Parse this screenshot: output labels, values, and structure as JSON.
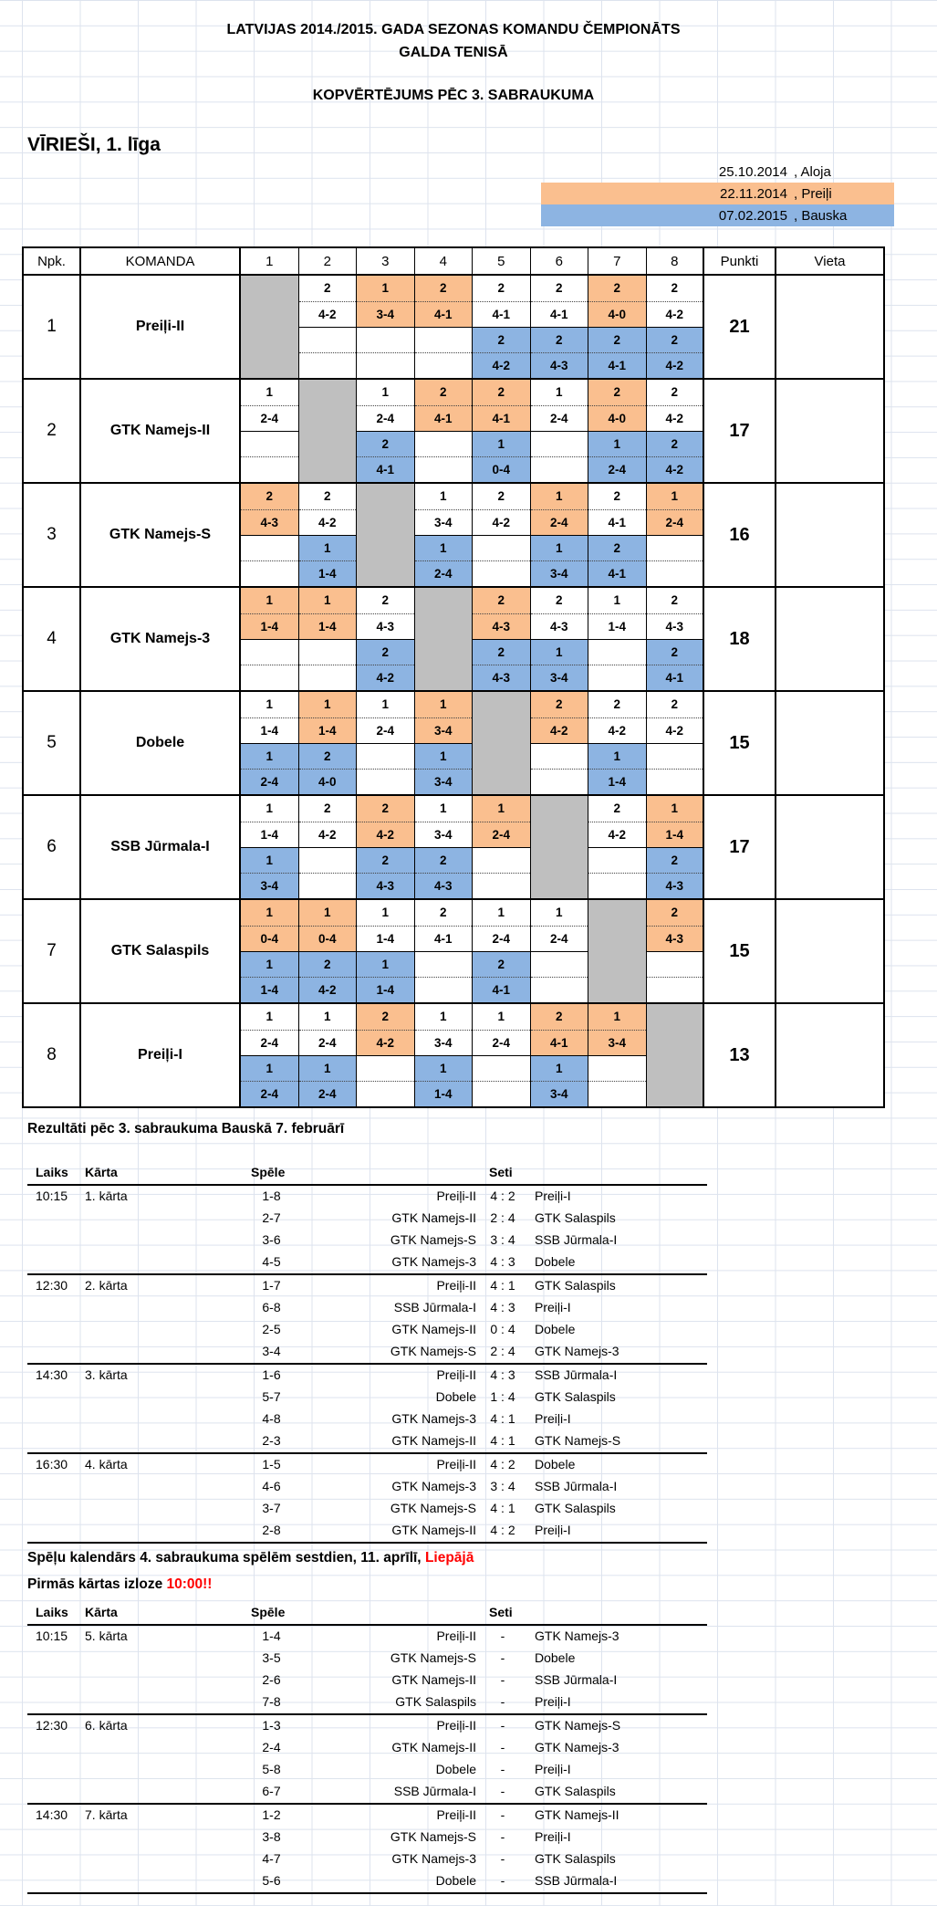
{
  "titles": {
    "line1": "LATVIJAS 2014./2015. GADA SEZONAS KOMANDU ČEMPIONĀTS",
    "line2": "GALDA TENISĀ",
    "line3": "KOPVĒRTĒJUMS PĒC 3. SABRAUKUMA",
    "league": "VĪRIEŠI, 1. līga"
  },
  "colors": {
    "orange": "#FABF8F",
    "blue": "#8DB4E2",
    "gray": "#BFBFBF",
    "red": "#FF0000"
  },
  "legend": [
    {
      "date": "25.10.2014",
      "city": ", Aloja",
      "fill": ""
    },
    {
      "date": "22.11.2014",
      "city": ", Preiļi",
      "fill": "#FABF8F"
    },
    {
      "date": "07.02.2015",
      "city": ", Bauska",
      "fill": "#8DB4E2"
    }
  ],
  "standings": {
    "headers": {
      "npk": "Npk.",
      "team": "KOMANDA",
      "cols": [
        "1",
        "2",
        "3",
        "4",
        "5",
        "6",
        "7",
        "8"
      ],
      "points": "Punkti",
      "place": "Vieta"
    },
    "teams": [
      {
        "npk": "1",
        "name": "Preiļi-II",
        "points": "21",
        "place": "",
        "cells": [
          null,
          {
            "t": [
              "2",
              "4-2"
            ],
            "tc": "w"
          },
          {
            "t": [
              "1",
              "3-4"
            ],
            "tc": "o"
          },
          {
            "t": [
              "2",
              "4-1"
            ],
            "tc": "o"
          },
          {
            "t": [
              "2",
              "4-1"
            ],
            "tc": "w",
            "b": [
              "2",
              "4-2"
            ]
          },
          {
            "t": [
              "2",
              "4-1"
            ],
            "tc": "w",
            "b": [
              "2",
              "4-3"
            ]
          },
          {
            "t": [
              "2",
              "4-0"
            ],
            "tc": "o",
            "b": [
              "2",
              "4-1"
            ]
          },
          {
            "t": [
              "2",
              "4-2"
            ],
            "tc": "w",
            "b": [
              "2",
              "4-2"
            ]
          }
        ]
      },
      {
        "npk": "2",
        "name": "GTK Namejs-II",
        "points": "17",
        "place": "",
        "cells": [
          {
            "t": [
              "1",
              "2-4"
            ],
            "tc": "w"
          },
          null,
          {
            "t": [
              "1",
              "2-4"
            ],
            "tc": "w",
            "b": [
              "2",
              "4-1"
            ]
          },
          {
            "t": [
              "2",
              "4-1"
            ],
            "tc": "o"
          },
          {
            "t": [
              "2",
              "4-1"
            ],
            "tc": "o",
            "b": [
              "1",
              "0-4"
            ]
          },
          {
            "t": [
              "1",
              "2-4"
            ],
            "tc": "w"
          },
          {
            "t": [
              "2",
              "4-0"
            ],
            "tc": "o",
            "b": [
              "1",
              "2-4"
            ]
          },
          {
            "t": [
              "2",
              "4-2"
            ],
            "tc": "w",
            "b": [
              "2",
              "4-2"
            ]
          }
        ]
      },
      {
        "npk": "3",
        "name": "GTK Namejs-S",
        "points": "16",
        "place": "",
        "cells": [
          {
            "t": [
              "2",
              "4-3"
            ],
            "tc": "o"
          },
          {
            "t": [
              "2",
              "4-2"
            ],
            "tc": "w",
            "b": [
              "1",
              "1-4"
            ]
          },
          null,
          {
            "t": [
              "1",
              "3-4"
            ],
            "tc": "w",
            "b": [
              "1",
              "2-4"
            ]
          },
          {
            "t": [
              "2",
              "4-2"
            ],
            "tc": "w"
          },
          {
            "t": [
              "1",
              "2-4"
            ],
            "tc": "o",
            "b": [
              "1",
              "3-4"
            ]
          },
          {
            "t": [
              "2",
              "4-1"
            ],
            "tc": "w",
            "b": [
              "2",
              "4-1"
            ]
          },
          {
            "t": [
              "1",
              "2-4"
            ],
            "tc": "o"
          }
        ]
      },
      {
        "npk": "4",
        "name": "GTK Namejs-3",
        "points": "18",
        "place": "",
        "cells": [
          {
            "t": [
              "1",
              "1-4"
            ],
            "tc": "o"
          },
          {
            "t": [
              "1",
              "1-4"
            ],
            "tc": "o"
          },
          {
            "t": [
              "2",
              "4-3"
            ],
            "tc": "w",
            "b": [
              "2",
              "4-2"
            ]
          },
          null,
          {
            "t": [
              "2",
              "4-3"
            ],
            "tc": "o",
            "b": [
              "2",
              "4-3"
            ]
          },
          {
            "t": [
              "2",
              "4-3"
            ],
            "tc": "w",
            "b": [
              "1",
              "3-4"
            ]
          },
          {
            "t": [
              "1",
              "1-4"
            ],
            "tc": "w"
          },
          {
            "t": [
              "2",
              "4-3"
            ],
            "tc": "w",
            "b": [
              "2",
              "4-1"
            ]
          }
        ]
      },
      {
        "npk": "5",
        "name": "Dobele",
        "points": "15",
        "place": "",
        "cells": [
          {
            "t": [
              "1",
              "1-4"
            ],
            "tc": "w",
            "b": [
              "1",
              "2-4"
            ]
          },
          {
            "t": [
              "1",
              "1-4"
            ],
            "tc": "o",
            "b": [
              "2",
              "4-0"
            ]
          },
          {
            "t": [
              "1",
              "2-4"
            ],
            "tc": "w"
          },
          {
            "t": [
              "1",
              "3-4"
            ],
            "tc": "o",
            "b": [
              "1",
              "3-4"
            ]
          },
          null,
          {
            "t": [
              "2",
              "4-2"
            ],
            "tc": "o"
          },
          {
            "t": [
              "2",
              "4-2"
            ],
            "tc": "w",
            "b": [
              "1",
              "1-4"
            ]
          },
          {
            "t": [
              "2",
              "4-2"
            ],
            "tc": "w"
          }
        ]
      },
      {
        "npk": "6",
        "name": "SSB Jūrmala-I",
        "points": "17",
        "place": "",
        "cells": [
          {
            "t": [
              "1",
              "1-4"
            ],
            "tc": "w",
            "b": [
              "1",
              "3-4"
            ]
          },
          {
            "t": [
              "2",
              "4-2"
            ],
            "tc": "w"
          },
          {
            "t": [
              "2",
              "4-2"
            ],
            "tc": "o",
            "b": [
              "2",
              "4-3"
            ]
          },
          {
            "t": [
              "1",
              "3-4"
            ],
            "tc": "w",
            "b": [
              "2",
              "4-3"
            ]
          },
          {
            "t": [
              "1",
              "2-4"
            ],
            "tc": "o"
          },
          null,
          {
            "t": [
              "2",
              "4-2"
            ],
            "tc": "w"
          },
          {
            "t": [
              "1",
              "1-4"
            ],
            "tc": "o",
            "b": [
              "2",
              "4-3"
            ]
          }
        ]
      },
      {
        "npk": "7",
        "name": "GTK Salaspils",
        "points": "15",
        "place": "",
        "cells": [
          {
            "t": [
              "1",
              "0-4"
            ],
            "tc": "o",
            "b": [
              "1",
              "1-4"
            ]
          },
          {
            "t": [
              "1",
              "0-4"
            ],
            "tc": "o",
            "b": [
              "2",
              "4-2"
            ]
          },
          {
            "t": [
              "1",
              "1-4"
            ],
            "tc": "w",
            "b": [
              "1",
              "1-4"
            ]
          },
          {
            "t": [
              "2",
              "4-1"
            ],
            "tc": "w"
          },
          {
            "t": [
              "1",
              "2-4"
            ],
            "tc": "w",
            "b": [
              "2",
              "4-1"
            ]
          },
          {
            "t": [
              "1",
              "2-4"
            ],
            "tc": "w"
          },
          null,
          {
            "t": [
              "2",
              "4-3"
            ],
            "tc": "o"
          }
        ]
      },
      {
        "npk": "8",
        "name": "Preiļi-I",
        "points": "13",
        "place": "",
        "cells": [
          {
            "t": [
              "1",
              "2-4"
            ],
            "tc": "w",
            "b": [
              "1",
              "2-4"
            ]
          },
          {
            "t": [
              "1",
              "2-4"
            ],
            "tc": "w",
            "b": [
              "1",
              "2-4"
            ]
          },
          {
            "t": [
              "2",
              "4-2"
            ],
            "tc": "o"
          },
          {
            "t": [
              "1",
              "3-4"
            ],
            "tc": "w",
            "b": [
              "1",
              "1-4"
            ]
          },
          {
            "t": [
              "1",
              "2-4"
            ],
            "tc": "w"
          },
          {
            "t": [
              "2",
              "4-1"
            ],
            "tc": "o",
            "b": [
              "1",
              "3-4"
            ]
          },
          {
            "t": [
              "1",
              "3-4"
            ],
            "tc": "o"
          },
          null
        ]
      }
    ]
  },
  "results": {
    "title": "Rezultāti pēc 3. sabraukuma Bauskā 7. februārī",
    "headers": {
      "laiks": "Laiks",
      "karta": "Kārta",
      "spele": "Spēle",
      "seti": "Seti"
    },
    "rounds": [
      {
        "time": "10:15",
        "round": "1. kārta",
        "games": [
          {
            "code": "1-8",
            "home": "Preiļi-II",
            "score": "4 : 2",
            "away": "Preiļi-I"
          },
          {
            "code": "2-7",
            "home": "GTK Namejs-II",
            "score": "2 : 4",
            "away": "GTK Salaspils"
          },
          {
            "code": "3-6",
            "home": "GTK Namejs-S",
            "score": "3 : 4",
            "away": "SSB Jūrmala-I"
          },
          {
            "code": "4-5",
            "home": "GTK Namejs-3",
            "score": "4 : 3",
            "away": "Dobele"
          }
        ]
      },
      {
        "time": "12:30",
        "round": "2. kārta",
        "games": [
          {
            "code": "1-7",
            "home": "Preiļi-II",
            "score": "4 : 1",
            "away": "GTK Salaspils"
          },
          {
            "code": "6-8",
            "home": "SSB Jūrmala-I",
            "score": "4 : 3",
            "away": "Preiļi-I"
          },
          {
            "code": "2-5",
            "home": "GTK Namejs-II",
            "score": "0 : 4",
            "away": "Dobele"
          },
          {
            "code": "3-4",
            "home": "GTK Namejs-S",
            "score": "2 : 4",
            "away": "GTK Namejs-3"
          }
        ]
      },
      {
        "time": "14:30",
        "round": "3. kārta",
        "games": [
          {
            "code": "1-6",
            "home": "Preiļi-II",
            "score": "4 : 3",
            "away": "SSB Jūrmala-I"
          },
          {
            "code": "5-7",
            "home": "Dobele",
            "score": "1 : 4",
            "away": "GTK Salaspils"
          },
          {
            "code": "4-8",
            "home": "GTK Namejs-3",
            "score": "4 : 1",
            "away": "Preiļi-I"
          },
          {
            "code": "2-3",
            "home": "GTK Namejs-II",
            "score": "4 : 1",
            "away": "GTK Namejs-S"
          }
        ]
      },
      {
        "time": "16:30",
        "round": "4. kārta",
        "games": [
          {
            "code": "1-5",
            "home": "Preiļi-II",
            "score": "4 : 2",
            "away": "Dobele"
          },
          {
            "code": "4-6",
            "home": "GTK Namejs-3",
            "score": "3 : 4",
            "away": "SSB Jūrmala-I"
          },
          {
            "code": "3-7",
            "home": "GTK Namejs-S",
            "score": "4 : 1",
            "away": "GTK Salaspils"
          },
          {
            "code": "2-8",
            "home": "GTK Namejs-II",
            "score": "4 : 2",
            "away": "Preiļi-I"
          }
        ]
      }
    ]
  },
  "calendar": {
    "title_prefix": "Spēļu kalendārs 4. sabraukuma spēlēm sestdien, 11. aprīlī, ",
    "title_highlight": "Liepājā",
    "subtitle_prefix": "Pirmās kārtas izloze ",
    "subtitle_highlight": "10:00!!",
    "headers": {
      "laiks": "Laiks",
      "karta": "Kārta",
      "spele": "Spēle",
      "seti": "Seti"
    },
    "rounds": [
      {
        "time": "10:15",
        "round": "5. kārta",
        "games": [
          {
            "code": "1-4",
            "home": "Preiļi-II",
            "score": "-",
            "away": "GTK Namejs-3"
          },
          {
            "code": "3-5",
            "home": "GTK Namejs-S",
            "score": "-",
            "away": "Dobele"
          },
          {
            "code": "2-6",
            "home": "GTK Namejs-II",
            "score": "-",
            "away": "SSB Jūrmala-I"
          },
          {
            "code": "7-8",
            "home": "GTK Salaspils",
            "score": "-",
            "away": "Preiļi-I"
          }
        ]
      },
      {
        "time": "12:30",
        "round": "6. kārta",
        "games": [
          {
            "code": "1-3",
            "home": "Preiļi-II",
            "score": "-",
            "away": "GTK Namejs-S"
          },
          {
            "code": "2-4",
            "home": "GTK Namejs-II",
            "score": "-",
            "away": "GTK Namejs-3"
          },
          {
            "code": "5-8",
            "home": "Dobele",
            "score": "-",
            "away": "Preiļi-I"
          },
          {
            "code": "6-7",
            "home": "SSB Jūrmala-I",
            "score": "-",
            "away": "GTK Salaspils"
          }
        ]
      },
      {
        "time": "14:30",
        "round": "7. kārta",
        "games": [
          {
            "code": "1-2",
            "home": "Preiļi-II",
            "score": "-",
            "away": "GTK Namejs-II"
          },
          {
            "code": "3-8",
            "home": "GTK Namejs-S",
            "score": "-",
            "away": "Preiļi-I"
          },
          {
            "code": "4-7",
            "home": "GTK Namejs-3",
            "score": "-",
            "away": "GTK Salaspils"
          },
          {
            "code": "5-6",
            "home": "Dobele",
            "score": "-",
            "away": "SSB Jūrmala-I"
          }
        ]
      }
    ]
  }
}
